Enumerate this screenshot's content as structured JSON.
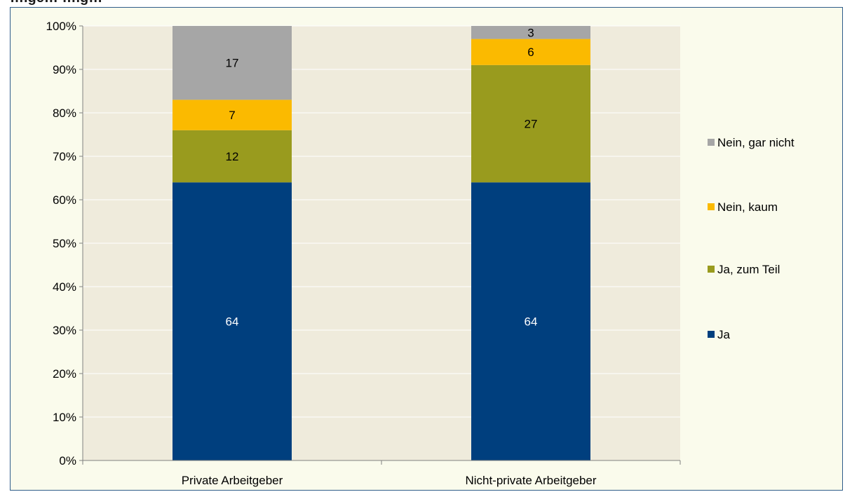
{
  "chart_data": {
    "type": "bar",
    "stacked": true,
    "title": "",
    "title_partial": "…ige…                                   …ig…",
    "categories": [
      "Private Arbeitgeber",
      "Nicht-private Arbeitgeber"
    ],
    "series": [
      {
        "name": "Ja",
        "values": [
          64,
          64
        ],
        "color": "#003f7e",
        "label_color": "#ffffff"
      },
      {
        "name": "Ja, zum Teil",
        "values": [
          12,
          27
        ],
        "color": "#999b1e",
        "label_color": "#000000"
      },
      {
        "name": "Nein, kaum",
        "values": [
          7,
          6
        ],
        "color": "#fbba00",
        "label_color": "#000000"
      },
      {
        "name": "Nein, gar nicht",
        "values": [
          17,
          3
        ],
        "color": "#a6a6a6",
        "label_color": "#000000"
      }
    ],
    "y_ticks": [
      "0%",
      "10%",
      "20%",
      "30%",
      "40%",
      "50%",
      "60%",
      "70%",
      "80%",
      "90%",
      "100%"
    ],
    "ylim": [
      0,
      100
    ],
    "grid": true,
    "legend_position": "right",
    "plot_background": "#efebdc"
  }
}
